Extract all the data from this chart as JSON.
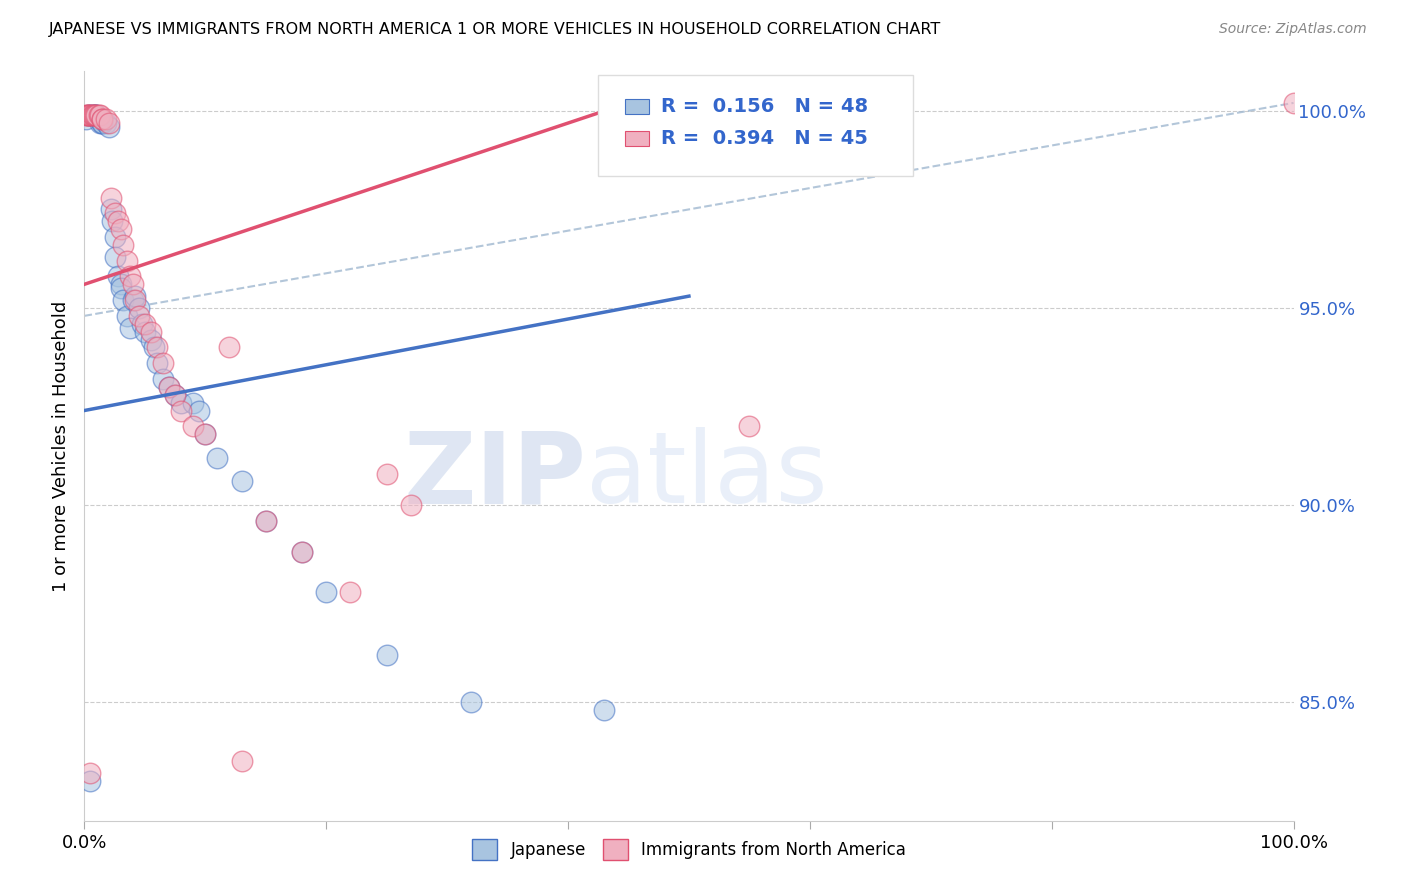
{
  "title": "JAPANESE VS IMMIGRANTS FROM NORTH AMERICA 1 OR MORE VEHICLES IN HOUSEHOLD CORRELATION CHART",
  "source": "Source: ZipAtlas.com",
  "ylabel": "1 or more Vehicles in Household",
  "xlim": [
    0.0,
    1.0
  ],
  "ylim": [
    0.82,
    1.01
  ],
  "yticks": [
    0.85,
    0.9,
    0.95,
    1.0
  ],
  "ytick_labels": [
    "85.0%",
    "90.0%",
    "95.0%",
    "100.0%"
  ],
  "xticks": [
    0.0,
    0.2,
    0.4,
    0.6,
    0.8,
    1.0
  ],
  "xtick_labels": [
    "0.0%",
    "",
    "",
    "",
    "",
    "100.0%"
  ],
  "legend_r_blue": "R =  0.156",
  "legend_n_blue": "N = 48",
  "legend_r_pink": "R =  0.394",
  "legend_n_pink": "N = 45",
  "blue_color": "#a8c4e0",
  "pink_color": "#f0b0c0",
  "blue_line_color": "#4472c4",
  "pink_line_color": "#e05070",
  "diag_line_color": "#a0b8d0",
  "blue_line_x0": 0.0,
  "blue_line_y0": 0.924,
  "blue_line_x1": 0.5,
  "blue_line_y1": 0.953,
  "pink_line_x0": 0.0,
  "pink_line_y0": 0.956,
  "pink_line_x1": 0.45,
  "pink_line_y1": 1.002,
  "diag_line_x0": 0.0,
  "diag_line_y0": 0.948,
  "diag_line_x1": 1.0,
  "diag_line_y1": 1.002,
  "japanese_x": [
    0.001,
    0.003,
    0.005,
    0.006,
    0.008,
    0.009,
    0.01,
    0.01,
    0.012,
    0.013,
    0.015,
    0.015,
    0.018,
    0.02,
    0.022,
    0.023,
    0.025,
    0.025,
    0.028,
    0.03,
    0.03,
    0.032,
    0.035,
    0.038,
    0.04,
    0.042,
    0.045,
    0.048,
    0.05,
    0.055,
    0.058,
    0.06,
    0.065,
    0.07,
    0.075,
    0.08,
    0.09,
    0.095,
    0.1,
    0.11,
    0.13,
    0.15,
    0.18,
    0.2,
    0.25,
    0.32,
    0.43,
    0.005
  ],
  "japanese_y": [
    0.998,
    0.999,
    0.999,
    0.999,
    0.999,
    0.999,
    0.999,
    0.999,
    0.998,
    0.997,
    0.997,
    0.997,
    0.997,
    0.996,
    0.975,
    0.972,
    0.968,
    0.963,
    0.958,
    0.956,
    0.955,
    0.952,
    0.948,
    0.945,
    0.952,
    0.953,
    0.95,
    0.946,
    0.944,
    0.942,
    0.94,
    0.936,
    0.932,
    0.93,
    0.928,
    0.926,
    0.926,
    0.924,
    0.918,
    0.912,
    0.906,
    0.896,
    0.888,
    0.878,
    0.862,
    0.85,
    0.848,
    0.83
  ],
  "immigrants_x": [
    0.001,
    0.002,
    0.003,
    0.004,
    0.005,
    0.006,
    0.007,
    0.008,
    0.009,
    0.01,
    0.012,
    0.013,
    0.015,
    0.015,
    0.018,
    0.02,
    0.022,
    0.025,
    0.028,
    0.03,
    0.032,
    0.035,
    0.038,
    0.04,
    0.042,
    0.045,
    0.05,
    0.055,
    0.06,
    0.065,
    0.07,
    0.075,
    0.08,
    0.09,
    0.1,
    0.12,
    0.13,
    0.15,
    0.18,
    0.22,
    0.25,
    0.27,
    0.55,
    0.005,
    1.0
  ],
  "immigrants_y": [
    0.999,
    0.999,
    0.999,
    0.999,
    0.999,
    0.999,
    0.999,
    0.999,
    0.999,
    0.999,
    0.999,
    0.999,
    0.998,
    0.998,
    0.998,
    0.997,
    0.978,
    0.974,
    0.972,
    0.97,
    0.966,
    0.962,
    0.958,
    0.956,
    0.952,
    0.948,
    0.946,
    0.944,
    0.94,
    0.936,
    0.93,
    0.928,
    0.924,
    0.92,
    0.918,
    0.94,
    0.835,
    0.896,
    0.888,
    0.878,
    0.908,
    0.9,
    0.92,
    0.832,
    1.002
  ],
  "watermark_zip": "ZIP",
  "watermark_atlas": "atlas",
  "background_color": "#ffffff",
  "grid_color": "#cccccc"
}
